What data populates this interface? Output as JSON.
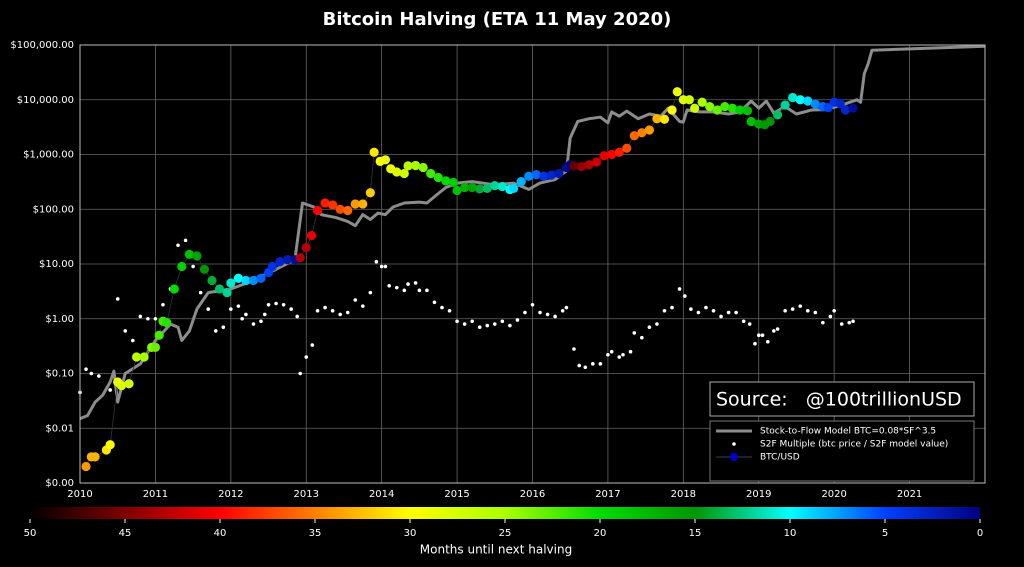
{
  "chart_data": {
    "type": "scatter",
    "title": "Bitcoin Halving (ETA 11 May 2020)",
    "log_y": true,
    "grid": true,
    "legend": "lower right",
    "annotation": "Source:   @100trillionUSD",
    "xlim": [
      2010,
      2022
    ],
    "xticks": [
      2010,
      2011,
      2012,
      2013,
      2014,
      2015,
      2016,
      2017,
      2018,
      2019,
      2020,
      2021
    ],
    "ylim": [
      0.001,
      100000
    ],
    "yticks": [
      {
        "value": 0.001,
        "label": "$0.00"
      },
      {
        "value": 0.01,
        "label": "$0.01"
      },
      {
        "value": 0.1,
        "label": "$0.10"
      },
      {
        "value": 1,
        "label": "$1.00"
      },
      {
        "value": 10,
        "label": "$10.00"
      },
      {
        "value": 100,
        "label": "$100.00"
      },
      {
        "value": 1000,
        "label": "$1,000.00"
      },
      {
        "value": 10000,
        "label": "$10,000.00"
      },
      {
        "value": 100000,
        "label": "$100,000.00"
      }
    ],
    "colorbar": {
      "label": "Months until next halving",
      "lim": [
        50,
        0
      ],
      "ticks": [
        50,
        45,
        40,
        35,
        30,
        25,
        20,
        15,
        10,
        5,
        0
      ]
    },
    "series": [
      {
        "name": "Stock-to-Flow Model BTC=0.08*SF^3.5",
        "kind": "line",
        "color": "#8c8c8c",
        "x": [
          2010.0,
          2010.1,
          2010.2,
          2010.3,
          2010.4,
          2010.45,
          2010.5,
          2010.6,
          2010.8,
          2011.0,
          2011.2,
          2011.3,
          2011.35,
          2011.45,
          2011.55,
          2011.7,
          2012.0,
          2012.3,
          2012.6,
          2012.85,
          2012.95,
          2013.1,
          2013.2,
          2013.4,
          2013.55,
          2013.65,
          2013.75,
          2013.85,
          2013.95,
          2014.05,
          2014.15,
          2014.3,
          2014.5,
          2014.6,
          2014.7,
          2014.85,
          2015.0,
          2015.2,
          2015.5,
          2015.75,
          2015.95,
          2016.1,
          2016.3,
          2016.45,
          2016.5,
          2016.6,
          2016.75,
          2016.9,
          2017.0,
          2017.05,
          2017.15,
          2017.25,
          2017.4,
          2017.55,
          2017.7,
          2017.8,
          2017.95,
          2018.0,
          2018.05,
          2018.2,
          2018.4,
          2018.6,
          2018.75,
          2018.9,
          2019.0,
          2019.1,
          2019.2,
          2019.35,
          2019.5,
          2019.7,
          2019.9,
          2020.1,
          2020.3,
          2020.35,
          2020.4,
          2020.45,
          2020.5,
          2021.0,
          2022.0
        ],
        "values": [
          0.015,
          0.017,
          0.03,
          0.04,
          0.07,
          0.11,
          0.03,
          0.1,
          0.15,
          0.4,
          0.8,
          0.7,
          0.4,
          0.6,
          1.5,
          3,
          3.5,
          5,
          8,
          12,
          130,
          110,
          80,
          70,
          60,
          50,
          80,
          65,
          85,
          80,
          110,
          130,
          135,
          130,
          170,
          250,
          300,
          320,
          280,
          300,
          230,
          300,
          350,
          500,
          2000,
          4000,
          4500,
          4800,
          3800,
          6000,
          5000,
          6200,
          4500,
          5500,
          5000,
          7000,
          4000,
          3900,
          6500,
          6000,
          6000,
          5500,
          6000,
          9500,
          7000,
          9500,
          5700,
          7500,
          5500,
          6500,
          6600,
          8000,
          10000,
          9000,
          30000,
          45000,
          80000,
          85000,
          95000
        ]
      },
      {
        "name": "S2F Multiple (btc price / S2F model value)",
        "kind": "dots",
        "color": "#ffffff",
        "x": [
          2010.0,
          2010.08,
          2010.15,
          2010.25,
          2010.4,
          2010.5,
          2010.6,
          2010.7,
          2010.8,
          2010.9,
          2011.0,
          2011.1,
          2011.2,
          2011.3,
          2011.4,
          2011.5,
          2011.6,
          2011.7,
          2011.8,
          2011.9,
          2012.0,
          2012.1,
          2012.15,
          2012.2,
          2012.3,
          2012.4,
          2012.45,
          2012.5,
          2012.6,
          2012.7,
          2012.8,
          2012.88,
          2012.92,
          2013.0,
          2013.08,
          2013.15,
          2013.25,
          2013.35,
          2013.45,
          2013.55,
          2013.65,
          2013.75,
          2013.85,
          2013.93,
          2014.0,
          2014.05,
          2014.1,
          2014.2,
          2014.3,
          2014.35,
          2014.45,
          2014.5,
          2014.6,
          2014.7,
          2014.8,
          2014.9,
          2015.0,
          2015.1,
          2015.2,
          2015.3,
          2015.4,
          2015.5,
          2015.6,
          2015.7,
          2015.8,
          2015.9,
          2016.0,
          2016.1,
          2016.2,
          2016.3,
          2016.4,
          2016.45,
          2016.55,
          2016.62,
          2016.7,
          2016.8,
          2016.9,
          2017.0,
          2017.05,
          2017.15,
          2017.2,
          2017.3,
          2017.35,
          2017.45,
          2017.55,
          2017.65,
          2017.75,
          2017.85,
          2017.95,
          2018.02,
          2018.1,
          2018.2,
          2018.3,
          2018.4,
          2018.5,
          2018.6,
          2018.7,
          2018.8,
          2018.88,
          2018.95,
          2019.0,
          2019.05,
          2019.12,
          2019.2,
          2019.25,
          2019.35,
          2019.45,
          2019.55,
          2019.65,
          2019.75,
          2019.85,
          2019.95,
          2020.0,
          2020.1,
          2020.2,
          2020.25
        ],
        "values": [
          0.045,
          0.12,
          0.1,
          0.09,
          0.05,
          2.3,
          0.6,
          0.4,
          1.1,
          1,
          1,
          1.8,
          3.5,
          22,
          27,
          9,
          3,
          1.5,
          0.6,
          0.7,
          1.5,
          1.7,
          1,
          1.2,
          0.8,
          0.9,
          1.2,
          1.8,
          1.9,
          1.8,
          1.5,
          1.1,
          0.1,
          0.2,
          0.33,
          1.4,
          1.6,
          1.4,
          1.2,
          1.3,
          2.2,
          1.7,
          3,
          11,
          9,
          9,
          4,
          3.7,
          3.3,
          4.3,
          4.5,
          3.3,
          3.3,
          2,
          1.6,
          1.4,
          0.9,
          0.8,
          0.9,
          0.7,
          0.75,
          0.8,
          0.9,
          0.75,
          0.95,
          1.3,
          1.8,
          1.3,
          1.2,
          1.1,
          1.4,
          1.6,
          0.28,
          0.14,
          0.13,
          0.15,
          0.15,
          0.22,
          0.25,
          0.2,
          0.22,
          0.25,
          0.55,
          0.45,
          0.7,
          0.8,
          1.4,
          1.6,
          3.5,
          2.6,
          1.5,
          1.3,
          1.6,
          1.4,
          1.1,
          1.3,
          1.3,
          0.9,
          0.8,
          0.35,
          0.5,
          0.5,
          0.38,
          0.6,
          0.65,
          1.4,
          1.5,
          1.7,
          1.4,
          1.3,
          0.85,
          1.1,
          1.4,
          0.8,
          0.85,
          0.9
        ]
      },
      {
        "name": "BTC/USD",
        "kind": "colored",
        "color": "#0000cc",
        "x": [
          2010.08,
          2010.15,
          2010.2,
          2010.35,
          2010.4,
          2010.5,
          2010.55,
          2010.65,
          2010.75,
          2010.85,
          2010.95,
          2011.0,
          2011.05,
          2011.1,
          2011.15,
          2011.25,
          2011.35,
          2011.45,
          2011.55,
          2011.65,
          2011.75,
          2011.85,
          2011.95,
          2012.0,
          2012.1,
          2012.2,
          2012.3,
          2012.4,
          2012.5,
          2012.55,
          2012.65,
          2012.75,
          2012.85,
          2012.92,
          2013.0,
          2013.07,
          2013.15,
          2013.25,
          2013.35,
          2013.45,
          2013.55,
          2013.65,
          2013.75,
          2013.85,
          2013.9,
          2013.98,
          2014.05,
          2014.12,
          2014.2,
          2014.3,
          2014.35,
          2014.45,
          2014.55,
          2014.65,
          2014.75,
          2014.85,
          2014.95,
          2015.0,
          2015.1,
          2015.2,
          2015.3,
          2015.4,
          2015.5,
          2015.6,
          2015.7,
          2015.75,
          2015.85,
          2015.95,
          2016.05,
          2016.15,
          2016.25,
          2016.35,
          2016.45,
          2016.5,
          2016.55,
          2016.65,
          2016.75,
          2016.85,
          2016.95,
          2017.05,
          2017.15,
          2017.25,
          2017.35,
          2017.45,
          2017.55,
          2017.65,
          2017.75,
          2017.85,
          2017.92,
          2018.0,
          2018.08,
          2018.15,
          2018.25,
          2018.35,
          2018.45,
          2018.55,
          2018.65,
          2018.75,
          2018.85,
          2018.9,
          2019.0,
          2019.08,
          2019.15,
          2019.25,
          2019.35,
          2019.45,
          2019.55,
          2019.65,
          2019.75,
          2019.85,
          2019.92,
          2020.0,
          2020.08,
          2020.15,
          2020.25
        ],
        "values": [
          0.002,
          0.003,
          0.003,
          0.004,
          0.005,
          0.07,
          0.06,
          0.065,
          0.2,
          0.2,
          0.3,
          0.3,
          0.5,
          0.9,
          0.85,
          3.5,
          9,
          15,
          14,
          8,
          5,
          3.5,
          3,
          4.5,
          5.5,
          5,
          5,
          5.5,
          7,
          9,
          11,
          12,
          12,
          13,
          20,
          33,
          95,
          130,
          120,
          100,
          95,
          125,
          125,
          200,
          1100,
          750,
          800,
          550,
          480,
          450,
          620,
          630,
          580,
          450,
          380,
          330,
          310,
          220,
          250,
          250,
          235,
          240,
          270,
          260,
          230,
          240,
          320,
          400,
          430,
          400,
          420,
          450,
          580,
          650,
          620,
          600,
          650,
          730,
          950,
          1000,
          1100,
          1300,
          2200,
          2500,
          2800,
          4500,
          4400,
          6500,
          14000,
          10000,
          10000,
          7000,
          9000,
          7500,
          6500,
          7500,
          7000,
          6500,
          6300,
          4000,
          3600,
          3500,
          4000,
          5300,
          8000,
          11000,
          10000,
          9500,
          8300,
          7500,
          7200,
          9000,
          8500,
          6500,
          7000
        ],
        "months": [
          34,
          33,
          33,
          31,
          30,
          29,
          28,
          27,
          26,
          25,
          24,
          23,
          22,
          22,
          21,
          20,
          19,
          18,
          16,
          15,
          14,
          13,
          12,
          11,
          10,
          9,
          7,
          6,
          5,
          4,
          3,
          2,
          1,
          43,
          43,
          41,
          40,
          39,
          38,
          37,
          36,
          34,
          33,
          32,
          31,
          30,
          29,
          29,
          28,
          27,
          26,
          25,
          24,
          22,
          21,
          20,
          19,
          18,
          17,
          16,
          14,
          13,
          12,
          11,
          10,
          9,
          8,
          7,
          6,
          4,
          3,
          2,
          1,
          0,
          46,
          44,
          43,
          42,
          41,
          40,
          39,
          37,
          36,
          35,
          34,
          33,
          31,
          30,
          29,
          28,
          27,
          27,
          25,
          24,
          23,
          22,
          21,
          19,
          18,
          18,
          16,
          15,
          15,
          13,
          12,
          11,
          10,
          9,
          7,
          6,
          5,
          4,
          3,
          3,
          1
        ]
      }
    ]
  }
}
